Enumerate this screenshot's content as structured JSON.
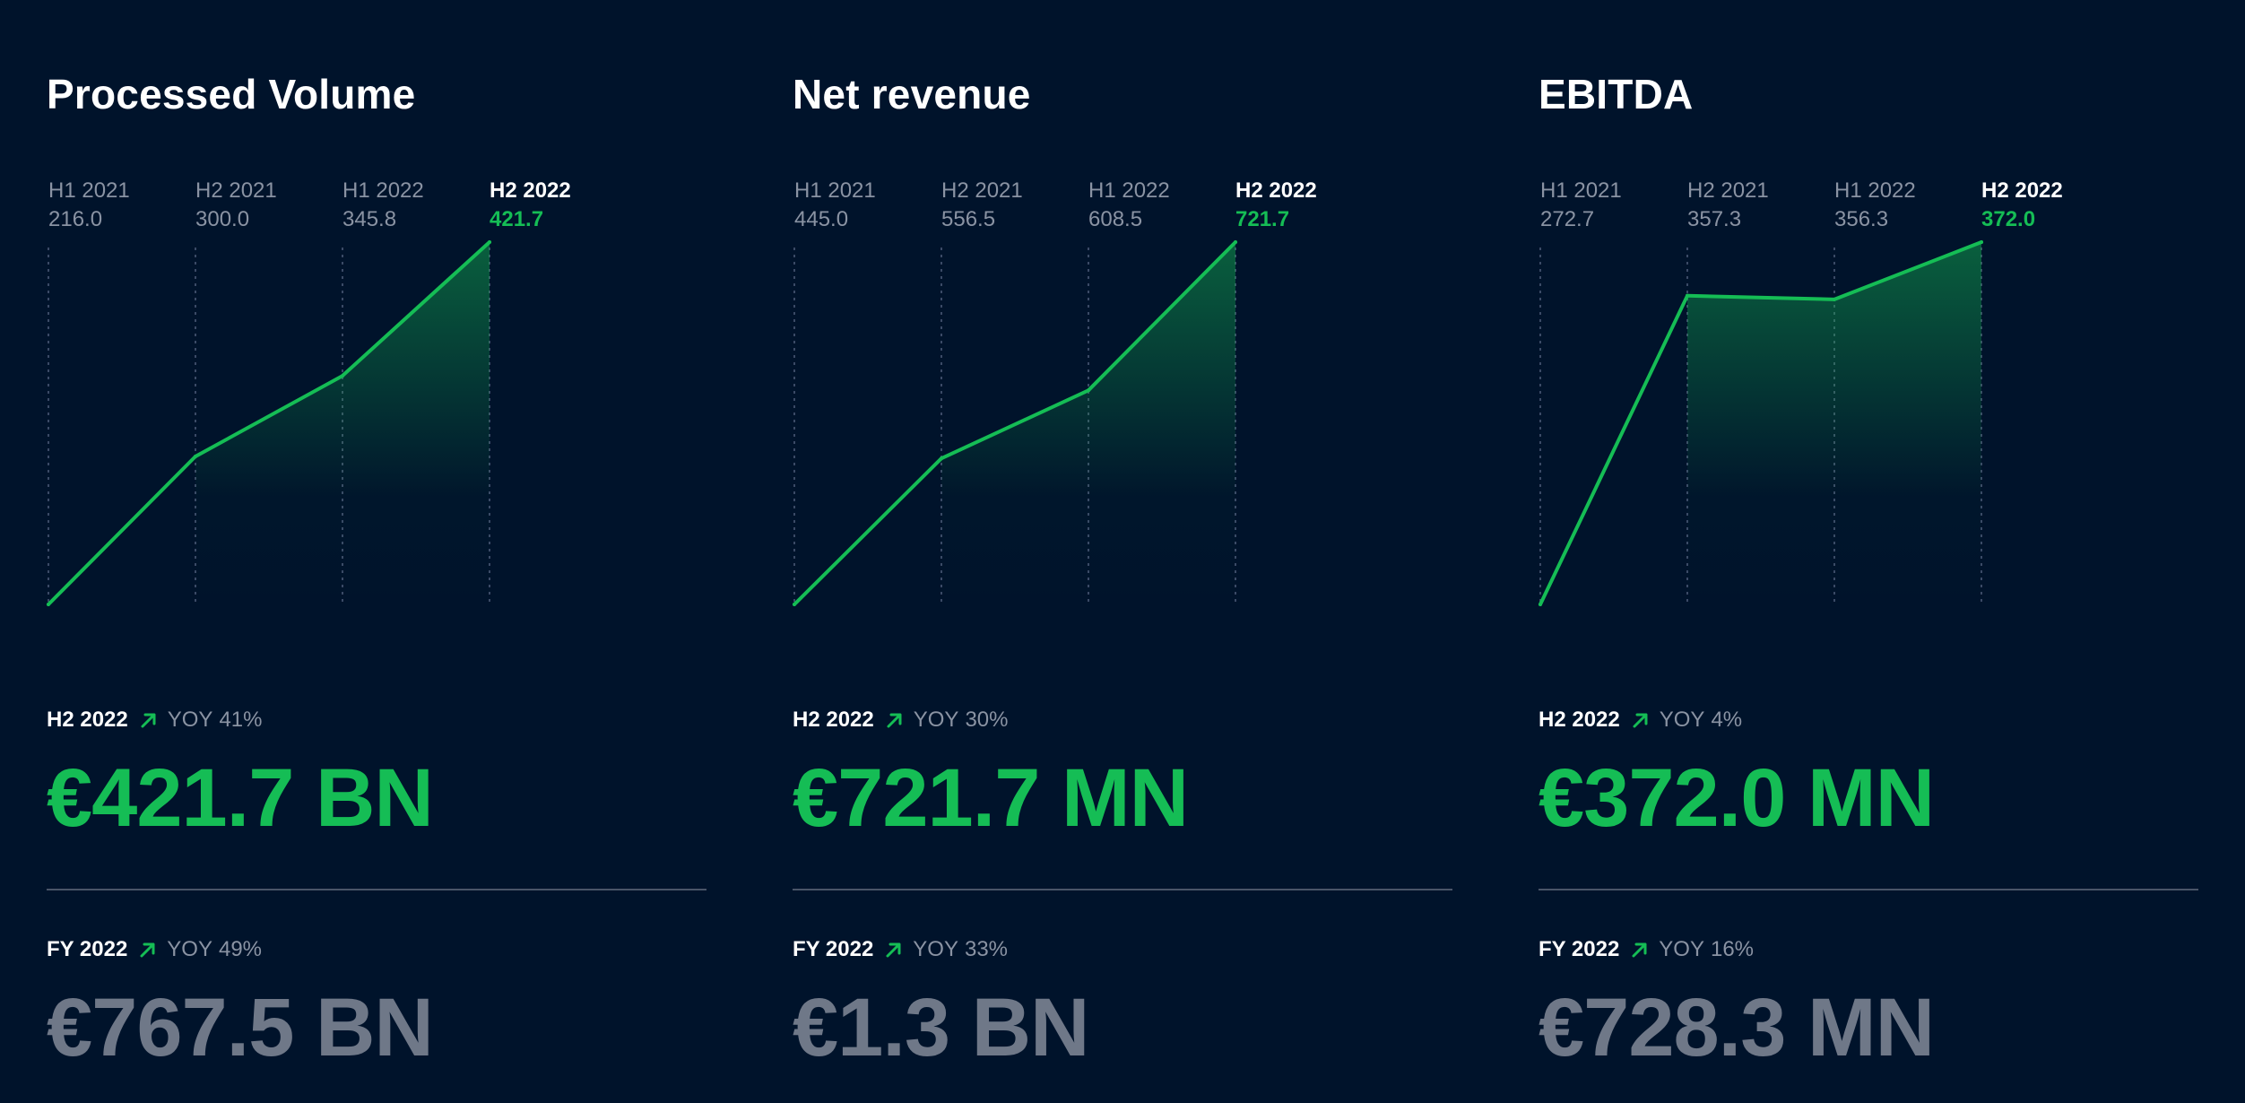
{
  "colors": {
    "background": "#00132b",
    "accent": "#15bd55",
    "muted_value": "#6f7888",
    "label_gray": "#8a93a3",
    "divider": "#4a5568"
  },
  "panels": [
    {
      "title": "Processed Volume",
      "summary_h2": {
        "period": "H2 2022",
        "yoy_label": "YOY",
        "yoy_value": "41%",
        "value": "€421.7 BN",
        "trend_icon": "arrow-up-right-icon"
      },
      "summary_fy": {
        "period": "FY 2022",
        "yoy_label": "YOY",
        "yoy_value": "49%",
        "value": "€767.5 BN",
        "trend_icon": "arrow-up-right-icon"
      }
    },
    {
      "title": "Net revenue",
      "summary_h2": {
        "period": "H2 2022",
        "yoy_label": "YOY",
        "yoy_value": "30%",
        "value": "€721.7 MN",
        "trend_icon": "arrow-up-right-icon"
      },
      "summary_fy": {
        "period": "FY 2022",
        "yoy_label": "YOY",
        "yoy_value": "33%",
        "value": "€1.3 BN",
        "trend_icon": "arrow-up-right-icon"
      }
    },
    {
      "title": "EBITDA",
      "summary_h2": {
        "period": "H2 2022",
        "yoy_label": "YOY",
        "yoy_value": "4%",
        "value": "€372.0 MN",
        "trend_icon": "arrow-up-right-icon"
      },
      "summary_fy": {
        "period": "FY 2022",
        "yoy_label": "YOY",
        "yoy_value": "16%",
        "value": "€728.3 MN",
        "trend_icon": "arrow-up-right-icon"
      }
    }
  ],
  "chart_data": [
    {
      "type": "area",
      "title": "Processed Volume",
      "categories": [
        "H1 2021",
        "H2 2021",
        "H1 2022",
        "H2 2022"
      ],
      "values": [
        216.0,
        300.0,
        345.8,
        421.7
      ],
      "value_labels": [
        "216.0",
        "300.0",
        "345.8",
        "421.7"
      ],
      "highlight_index": 3,
      "grid": "vertical dotted"
    },
    {
      "type": "area",
      "title": "Net revenue",
      "categories": [
        "H1 2021",
        "H2 2021",
        "H1 2022",
        "H2 2022"
      ],
      "values": [
        445.0,
        556.5,
        608.5,
        721.7
      ],
      "value_labels": [
        "445.0",
        "556.5",
        "608.5",
        "721.7"
      ],
      "highlight_index": 3,
      "grid": "vertical dotted"
    },
    {
      "type": "area",
      "title": "EBITDA",
      "categories": [
        "H1 2021",
        "H2 2021",
        "H1 2022",
        "H2 2022"
      ],
      "values": [
        272.7,
        357.3,
        356.3,
        372.0
      ],
      "value_labels": [
        "272.7",
        "357.3",
        "356.3",
        "372.0"
      ],
      "highlight_index": 3,
      "grid": "vertical dotted"
    }
  ]
}
